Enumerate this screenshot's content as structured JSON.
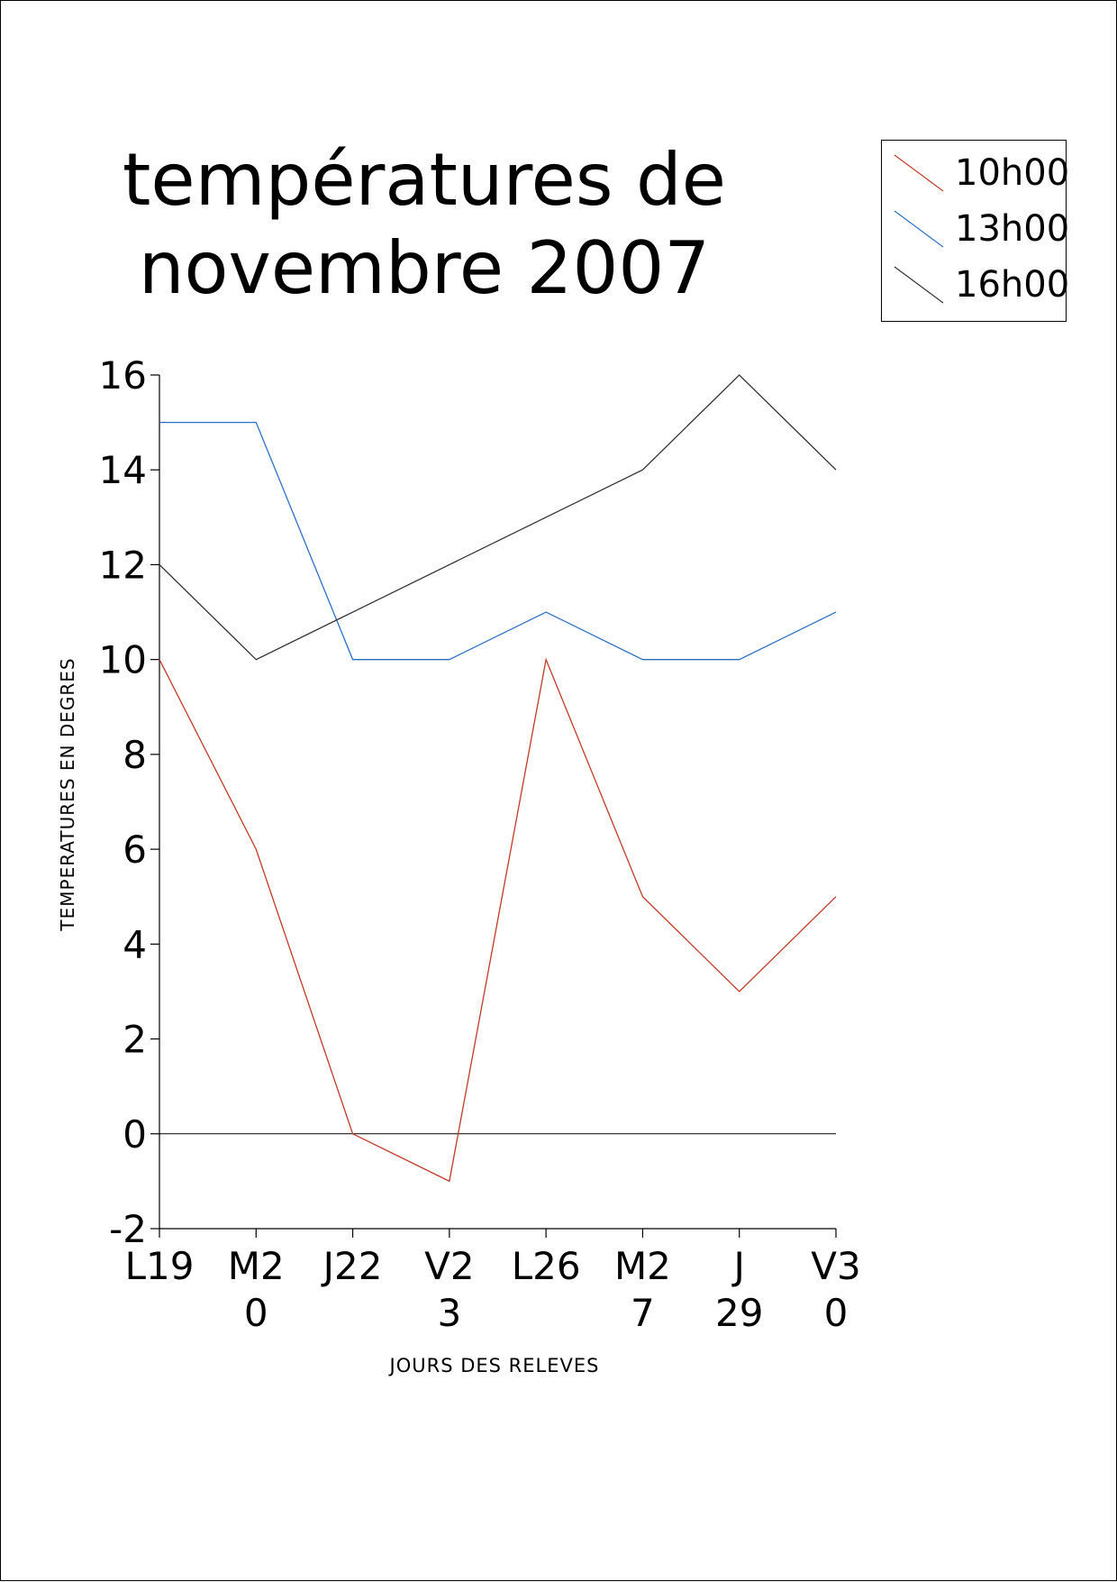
{
  "chart_data": {
    "type": "line",
    "title": "températures  de novembre 2007",
    "title_lines": [
      "températures  de",
      "novembre 2007"
    ],
    "xlabel": "JOURS DES RELEVES",
    "ylabel": "TEMPERATURES EN DEGRES",
    "categories": [
      "L19",
      "M20",
      "J22",
      "V23",
      "L26",
      "M27",
      "J 29",
      "V30"
    ],
    "category_tick_lines": [
      [
        "L19"
      ],
      [
        "M2",
        "0"
      ],
      [
        "J22"
      ],
      [
        "V2",
        "3"
      ],
      [
        "L26"
      ],
      [
        "M2",
        "7"
      ],
      [
        "J",
        "29"
      ],
      [
        "V3",
        "0"
      ]
    ],
    "ylim": [
      -2,
      16
    ],
    "yticks": [
      -2,
      0,
      2,
      4,
      6,
      8,
      10,
      12,
      14,
      16
    ],
    "grid": false,
    "zero_line": true,
    "legend_position": "top-right",
    "series": [
      {
        "name": "10h00",
        "color": "#c0392b",
        "values": [
          10,
          6,
          0,
          -1,
          10,
          5,
          3,
          5
        ]
      },
      {
        "name": "13h00",
        "color": "#2e6fc4",
        "values": [
          15,
          15,
          10,
          10,
          11,
          10,
          10,
          11
        ]
      },
      {
        "name": "16h00",
        "color": "#333333",
        "values": [
          12,
          10,
          11,
          12,
          13,
          14,
          16,
          14
        ]
      }
    ]
  }
}
